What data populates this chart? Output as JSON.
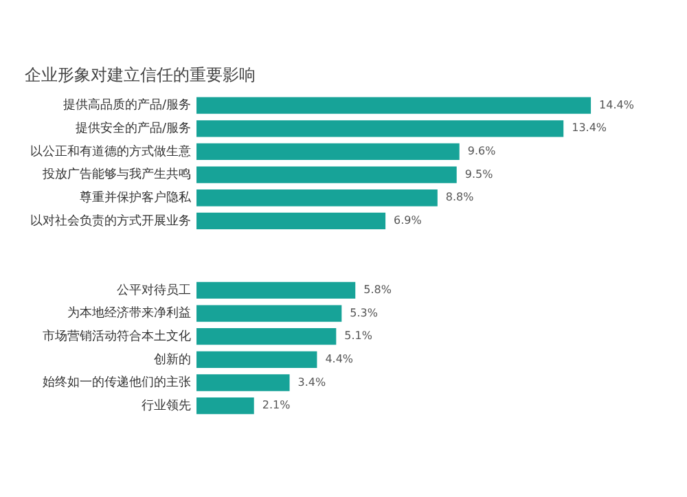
{
  "chart_data": {
    "type": "bar",
    "orientation": "horizontal",
    "title": "企业形象对建立信任的重要影响",
    "categories": [
      "提供高品质的产品/服务",
      "提供安全的产品/服务",
      "以公正和有道德的方式做生意",
      "投放广告能够与我产生共鸣",
      "尊重并保护客户隐私",
      "以对社会负责的方式开展业务",
      null,
      null,
      "公平对待员工",
      "为本地经济带来净利益",
      "市场营销活动符合本土文化",
      "创新的",
      "始终如一的传递他们的主张",
      "行业领先"
    ],
    "values": [
      14.4,
      13.4,
      9.6,
      9.5,
      8.8,
      6.9,
      null,
      null,
      5.8,
      5.3,
      5.1,
      4.4,
      3.4,
      2.1
    ],
    "value_labels": [
      "14.4%",
      "13.4%",
      "9.6%",
      "9.5%",
      "8.8%",
      "6.9%",
      null,
      null,
      "5.8%",
      "5.3%",
      "5.1%",
      "4.4%",
      "3.4%",
      "2.1%"
    ],
    "color": "#17a398",
    "grid": false,
    "legend": false,
    "tick_labels": "y"
  }
}
